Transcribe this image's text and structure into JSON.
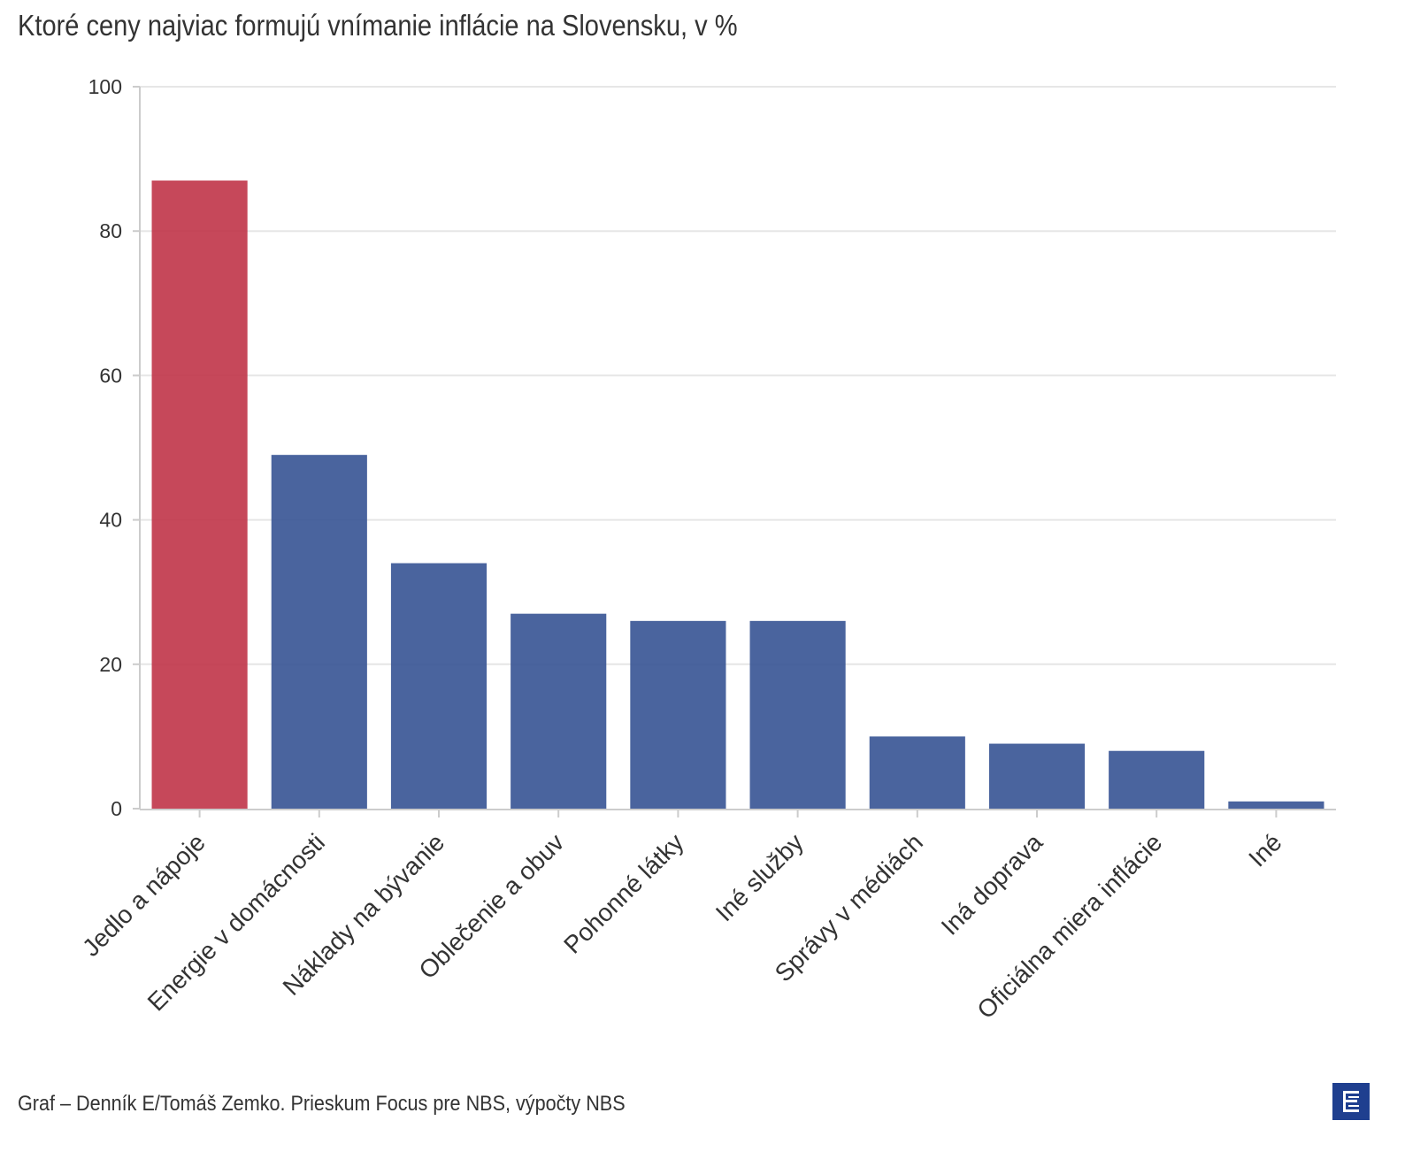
{
  "title": "Ktoré ceny najviac formujú vnímanie inflácie na Slovensku, v %",
  "footer": {
    "source": "Graf – Denník E/Tomáš Zemko. Prieskum Focus pre NBS, výpočty NBS",
    "logo_icon": "denník-e-logo-icon"
  },
  "colors": {
    "highlight": "#c1384c",
    "default": "#3b5796",
    "grid": "#e6e6e6",
    "logo": "#1f3f8f"
  },
  "chart_data": {
    "type": "bar",
    "title": "Ktoré ceny najviac formujú vnímanie inflácie na Slovensku, v %",
    "xlabel": "",
    "ylabel": "",
    "ylim": [
      0,
      100
    ],
    "yticks": [
      0,
      20,
      40,
      60,
      80,
      100
    ],
    "grid": true,
    "legend": "none",
    "categories": [
      "Jedlo a nápoje",
      "Energie v domácnosti",
      "Náklady na bývanie",
      "Oblečenie a obuv",
      "Pohonné látky",
      "Iné služby",
      "Správy v médiách",
      "Iná doprava",
      "Oficiálna miera inflácie",
      "Iné"
    ],
    "values": [
      87,
      49,
      34,
      27,
      26,
      26,
      10,
      9,
      8,
      1
    ],
    "highlighted_category": "Jedlo a nápoje"
  }
}
